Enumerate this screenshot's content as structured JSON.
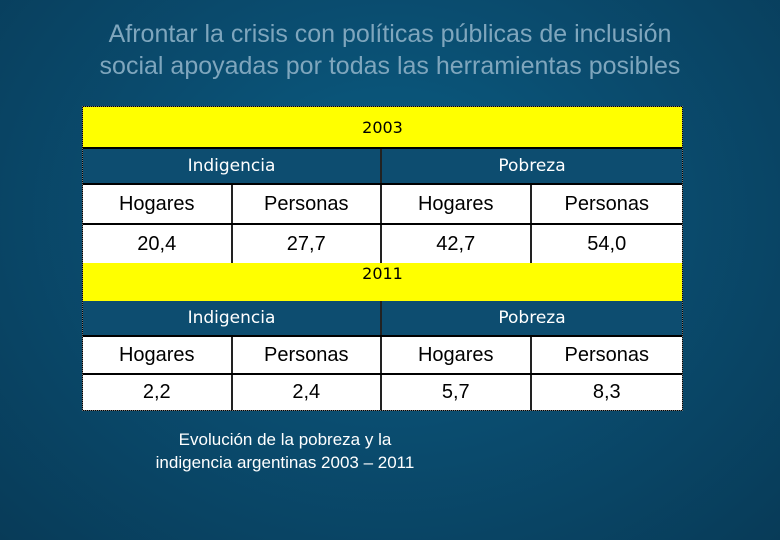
{
  "slide": {
    "title_line1": "Afrontar la crisis con políticas públicas de inclusión",
    "title_line2": "social apoyadas por todas las herramientas posibles",
    "caption_line1": "Evolución de la pobreza y la",
    "caption_line2": "indigencia argentinas 2003 – 2011"
  },
  "table": {
    "blocks": [
      {
        "year": "2003",
        "group_left": "Indigencia",
        "group_right": "Pobreza",
        "headers": [
          "Hogares",
          "Personas",
          "Hogares",
          "Personas"
        ],
        "values": [
          "20,4",
          "27,7",
          "42,7",
          "54,0"
        ]
      },
      {
        "year": "2011",
        "group_left": "Indigencia",
        "group_right": "Pobreza",
        "headers": [
          "Hogares",
          "Personas",
          "Hogares",
          "Personas"
        ],
        "values": [
          "2,2",
          "2,4",
          "5,7",
          "8,3"
        ]
      }
    ]
  },
  "colors": {
    "year_band": "#ffff00",
    "group_band": "#0d4d70",
    "background": "#0a4d70",
    "title_text": "#7fa6bd"
  }
}
